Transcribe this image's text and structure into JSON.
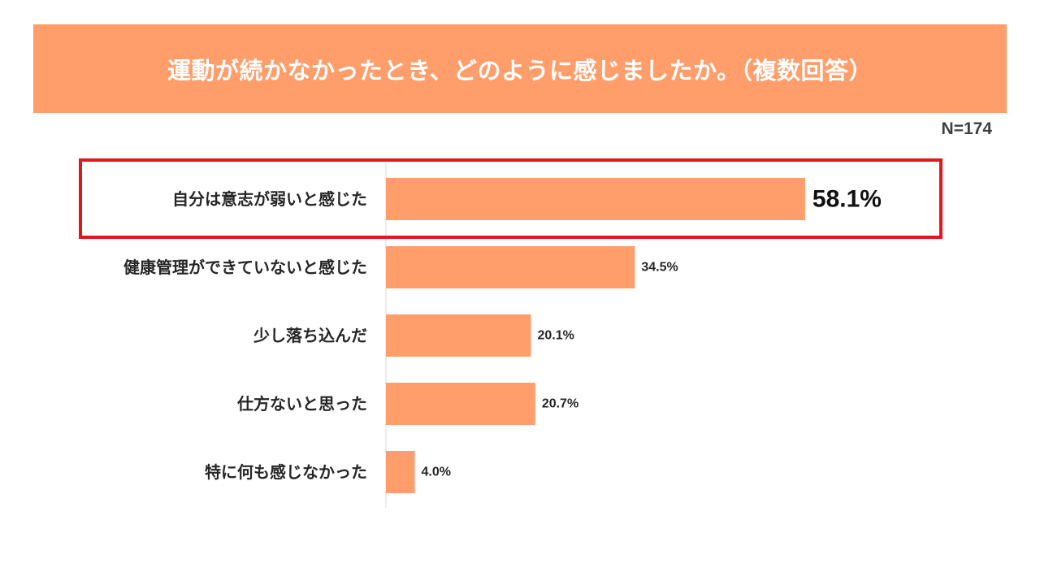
{
  "title": "運動が続かなかったとき、どのように感じましたか。（複数回答）",
  "sample_size": "N=174",
  "colors": {
    "banner": "#FF9E6B",
    "bar": "#FF9E6B",
    "highlight_border": "#E8141B",
    "axis": "#D9D9D9"
  },
  "chart_data": {
    "type": "bar",
    "orientation": "horizontal",
    "title": "運動が続かなかったとき、どのように感じましたか。（複数回答）",
    "categories": [
      "自分は意志が弱いと感じた",
      "健康管理ができていないと感じた",
      "少し落ち込んだ",
      "仕方ないと思った",
      "特に何も感じなかった"
    ],
    "values": [
      58.1,
      34.5,
      20.1,
      20.7,
      4.0
    ],
    "value_labels": [
      "58.1%",
      "34.5%",
      "20.1%",
      "20.7%",
      "4.0%"
    ],
    "unit": "%",
    "xlim": [
      0,
      100
    ],
    "highlighted_category_index": 0,
    "grid": false,
    "legend": "none"
  }
}
